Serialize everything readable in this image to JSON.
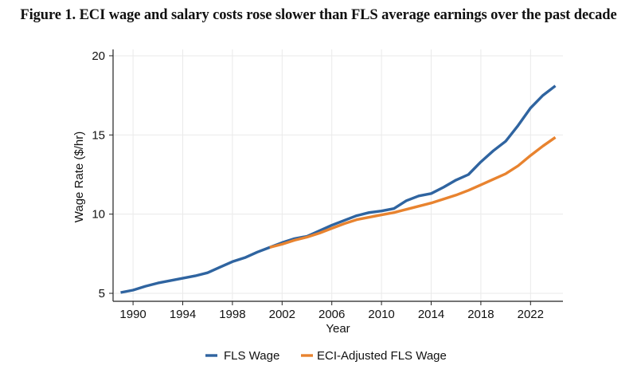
{
  "title": "Figure 1. ECI wage and salary costs rose slower than FLS average earnings over the past decade",
  "chart_data": {
    "type": "line",
    "title": "Figure 1. ECI wage and salary costs rose slower than FLS average earnings over the past decade",
    "xlabel": "Year",
    "ylabel": "Wage Rate ($/hr)",
    "xlim": [
      1989,
      2024
    ],
    "ylim": [
      5,
      20
    ],
    "x_ticks": [
      1990,
      1994,
      1998,
      2002,
      2006,
      2010,
      2014,
      2018,
      2022
    ],
    "y_ticks": [
      5,
      10,
      15,
      20
    ],
    "grid": true,
    "legend_position": "bottom",
    "series": [
      {
        "name": "FLS Wage",
        "color": "#2F64A0",
        "x": [
          1989,
          1990,
          1991,
          1992,
          1993,
          1994,
          1995,
          1996,
          1997,
          1998,
          1999,
          2000,
          2001,
          2002,
          2003,
          2004,
          2005,
          2006,
          2007,
          2008,
          2009,
          2010,
          2011,
          2012,
          2013,
          2014,
          2015,
          2016,
          2017,
          2018,
          2019,
          2020,
          2021,
          2022,
          2023,
          2024
        ],
        "values": [
          5.05,
          5.2,
          5.45,
          5.65,
          5.8,
          5.95,
          6.1,
          6.3,
          6.65,
          7.0,
          7.25,
          7.6,
          7.9,
          8.2,
          8.45,
          8.6,
          8.95,
          9.3,
          9.6,
          9.9,
          10.1,
          10.2,
          10.35,
          10.85,
          11.15,
          11.3,
          11.7,
          12.15,
          12.5,
          13.3,
          14.0,
          14.6,
          15.6,
          16.7,
          17.5,
          18.1
        ]
      },
      {
        "name": "ECI-Adjusted FLS Wage",
        "color": "#E8832F",
        "x": [
          2001,
          2002,
          2003,
          2004,
          2005,
          2006,
          2007,
          2008,
          2009,
          2010,
          2011,
          2012,
          2013,
          2014,
          2015,
          2016,
          2017,
          2018,
          2019,
          2020,
          2021,
          2022,
          2023,
          2024
        ],
        "values": [
          7.9,
          8.1,
          8.35,
          8.55,
          8.8,
          9.1,
          9.4,
          9.65,
          9.8,
          9.95,
          10.1,
          10.3,
          10.5,
          10.7,
          10.95,
          11.2,
          11.5,
          11.85,
          12.2,
          12.55,
          13.05,
          13.7,
          14.3,
          14.85
        ]
      }
    ]
  }
}
